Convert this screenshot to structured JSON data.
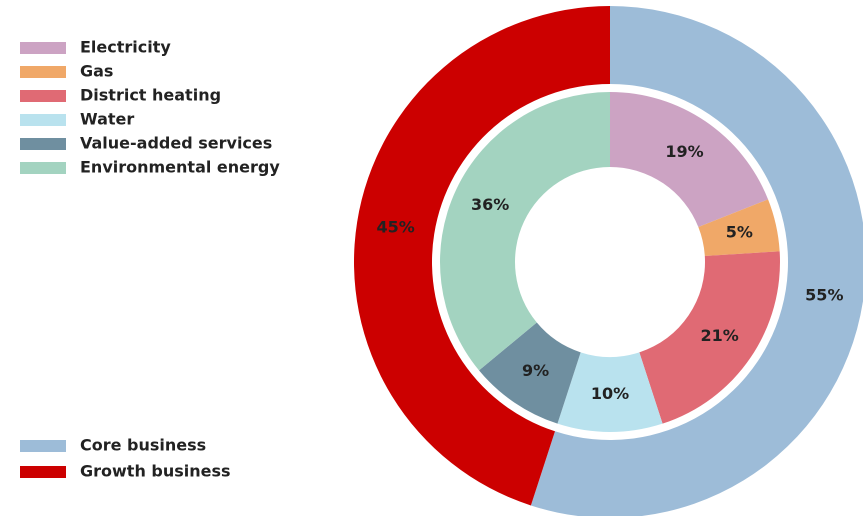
{
  "chart_data": {
    "type": "donut",
    "rings": [
      {
        "labels": [
          "Electricity",
          "Gas",
          "District heating",
          "Water",
          "Value-added services",
          "Environmental energy"
        ],
        "values": [
          19,
          5,
          21,
          10,
          9,
          36
        ],
        "value_labels": [
          "19%",
          "5%",
          "21%",
          "10%",
          "9%",
          "36%"
        ],
        "colors": [
          "#cca3c3",
          "#f0a868",
          "#e06a74",
          "#b9e2ee",
          "#6f8fa0",
          "#a3d3c0"
        ]
      },
      {
        "labels": [
          "Core business",
          "Growth business"
        ],
        "values": [
          55,
          45
        ],
        "value_labels": [
          "55%",
          "45%"
        ],
        "colors": [
          "#9dbcd8",
          "#cc0000"
        ]
      }
    ]
  }
}
